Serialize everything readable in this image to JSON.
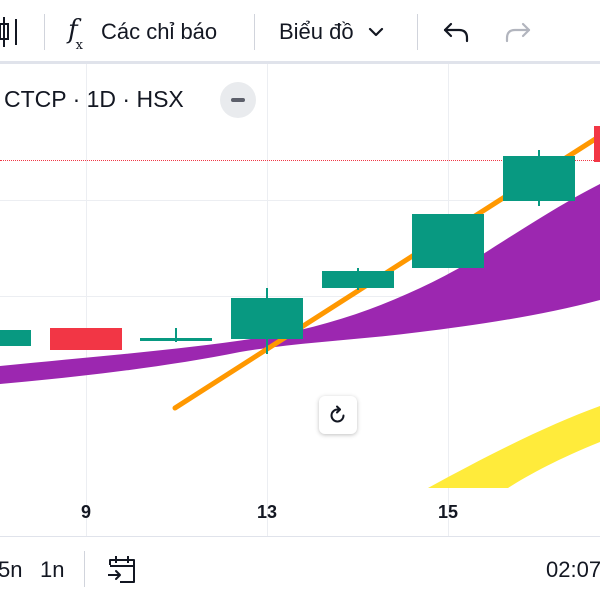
{
  "toolbar": {
    "indicators_label": "Các chỉ báo",
    "indicators_symbol": "f",
    "indicators_symbol_sub": "x",
    "chart_type_label": "Biểu đồ",
    "icons": {
      "chart_style": "candles-icon",
      "indicators": "fx-icon",
      "chart_type_menu": "chevron-down-icon",
      "undo": "undo-icon",
      "redo": "redo-icon"
    },
    "redo_enabled": false
  },
  "chart": {
    "symbol_title": "CTCP · 1D · HSX",
    "x_ticks": [
      {
        "label": "9",
        "day": 9
      },
      {
        "label": "13",
        "day": 13
      },
      {
        "label": "15",
        "day": 15
      }
    ],
    "colors": {
      "up_candle": "#089981",
      "down_candle": "#f23645",
      "cloud": "#9c27b0",
      "trend_line": "#ff9800",
      "yellow_cloud": "#ffeb3b",
      "last_price_line": "#f23645"
    }
  },
  "bottom_bar": {
    "ranges": [
      "5n",
      "1n"
    ],
    "goto_date_icon": "calendar-goto-icon",
    "time": "02:07"
  }
}
